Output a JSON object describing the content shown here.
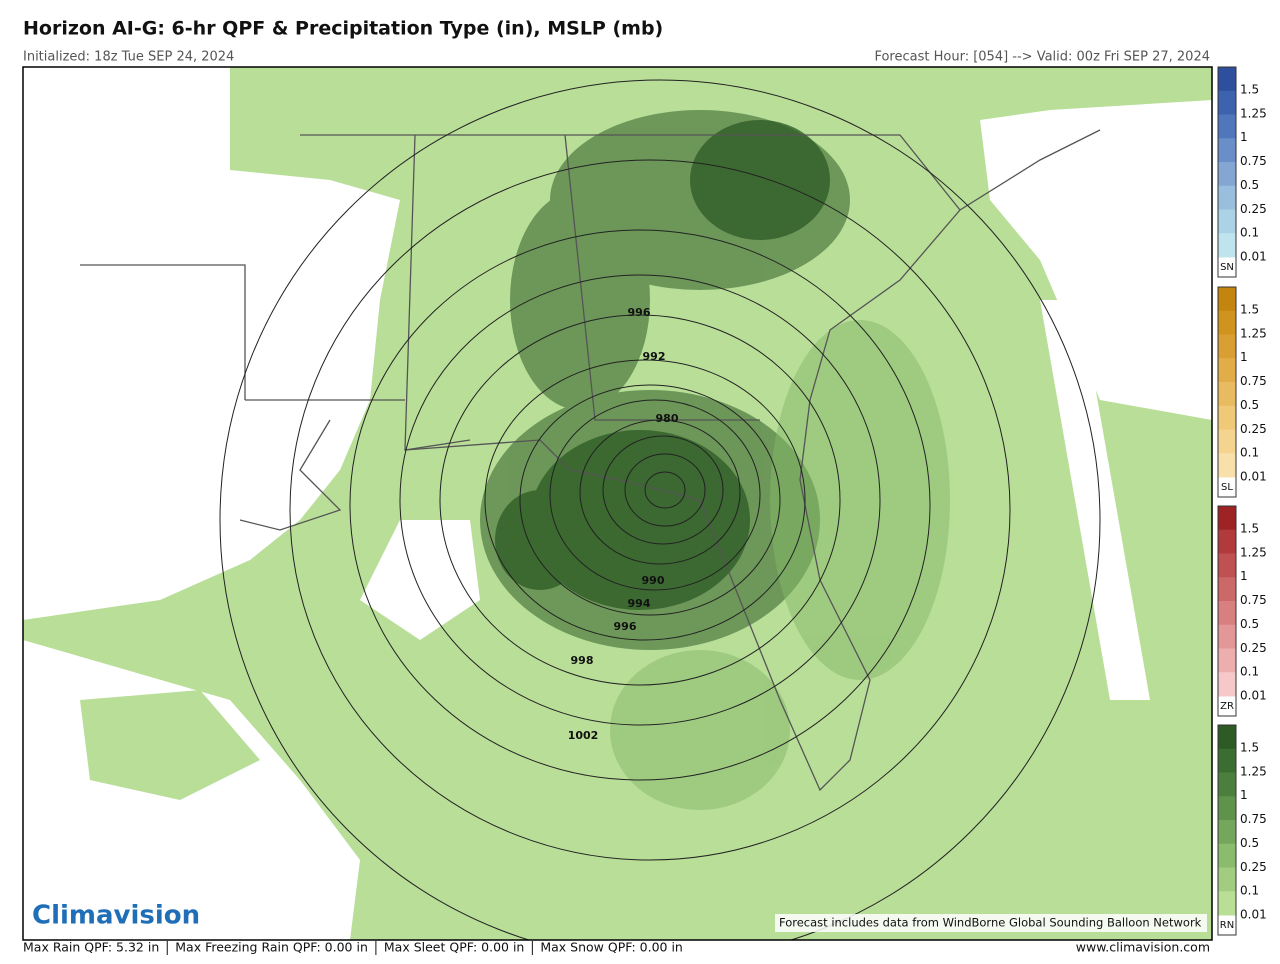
{
  "header": {
    "title": "Horizon AI-G: 6-hr QPF & Precipitation Type (in), MSLP (mb)",
    "initialized": "Initialized: 18z Tue SEP 24, 2024",
    "valid": "Forecast Hour: [054] --> Valid: 00z Fri SEP 27, 2024"
  },
  "contour_labels": [
    "996",
    "992",
    "980",
    "990",
    "994",
    "996",
    "998",
    "1002"
  ],
  "colorbars": [
    {
      "name": "SN",
      "labels": [
        "1.5",
        "1.25",
        "1",
        "0.75",
        "0.5",
        "0.25",
        "0.1",
        "0.01"
      ],
      "colors": [
        "#2d4f9e",
        "#3d62ae",
        "#5077bc",
        "#6a8ec8",
        "#83a6d3",
        "#98bfdd",
        "#aad3e6",
        "#c0e4ee"
      ]
    },
    {
      "name": "SL",
      "labels": [
        "1.5",
        "1.25",
        "1",
        "0.75",
        "0.5",
        "0.25",
        "0.1",
        "0.01"
      ],
      "colors": [
        "#c4850e",
        "#d0931e",
        "#da9f32",
        "#e2ad48",
        "#e9bb60",
        "#efc878",
        "#f4d48f",
        "#f8e0aa"
      ]
    },
    {
      "name": "ZR",
      "labels": [
        "1.5",
        "1.25",
        "1",
        "0.75",
        "0.5",
        "0.25",
        "0.1",
        "0.01"
      ],
      "colors": [
        "#9e2325",
        "#b03a3c",
        "#bf5152",
        "#cc6868",
        "#d87f7f",
        "#e39797",
        "#edafae",
        "#f7c8c8"
      ]
    },
    {
      "name": "RN",
      "labels": [
        "1.5",
        "1.25",
        "1",
        "0.75",
        "0.5",
        "0.25",
        "0.1",
        "0.01"
      ],
      "colors": [
        "#2d5a25",
        "#3b6c30",
        "#4c7f3d",
        "#5f934b",
        "#74a75b",
        "#8bbb6d",
        "#a2cd80",
        "#b9df96"
      ]
    }
  ],
  "logo": "Climavision",
  "credit": "Forecast includes data from WindBorne Global Sounding Balloon Network",
  "footer": {
    "stats": [
      "Max Rain QPF: 5.32 in",
      "Max Freezing Rain QPF: 0.00 in",
      "Max Sleet QPF: 0.00 in",
      "Max Snow QPF: 0.00 in"
    ],
    "url": "www.climavision.com"
  }
}
